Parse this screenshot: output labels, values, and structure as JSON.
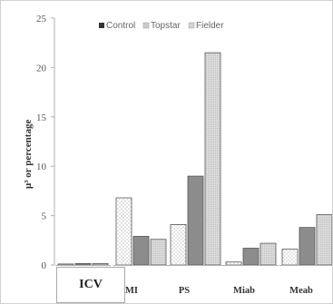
{
  "chart_data": {
    "type": "bar",
    "categories": [
      "ICV",
      "MI",
      "PS",
      "Miab",
      "Meab"
    ],
    "series": [
      {
        "name": "Control",
        "values": [
          0.1,
          6.8,
          4.1,
          0.3,
          1.6
        ],
        "color": "#ffffff",
        "pattern": "dots"
      },
      {
        "name": "Topstar",
        "values": [
          0.15,
          2.9,
          9.0,
          1.7,
          3.8
        ],
        "color": "#8c8c8c",
        "pattern": "solid"
      },
      {
        "name": "Fielder",
        "values": [
          0.15,
          2.6,
          21.5,
          2.2,
          5.1
        ],
        "color": "#d6d6d6",
        "pattern": "fine-dots"
      }
    ],
    "ylabel": "μ³ or percentage",
    "xlabel": "",
    "ylim": [
      0,
      25
    ],
    "yticks": [
      "0",
      "5",
      "10",
      "15",
      "20",
      "25"
    ],
    "grid": false,
    "legend_position": "top",
    "highlighted_category": "ICV"
  }
}
